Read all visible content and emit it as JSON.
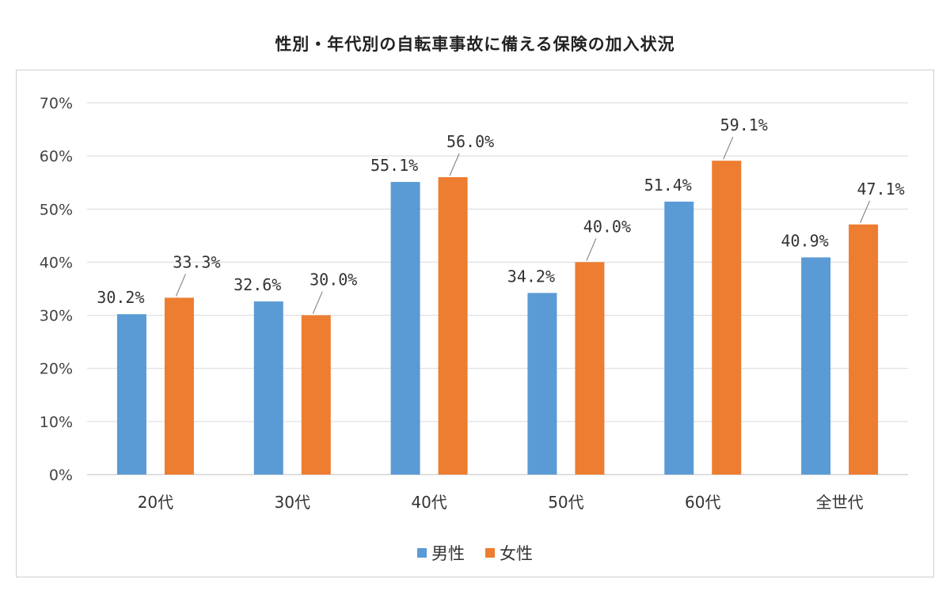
{
  "chart_data": {
    "type": "bar",
    "title": "性別・年代別の自転車事故に備える保険の加入状況",
    "categories": [
      "20代",
      "30代",
      "40代",
      "50代",
      "60代",
      "全世代"
    ],
    "series": [
      {
        "name": "男性",
        "color": "#5b9bd5",
        "values": [
          30.2,
          32.6,
          55.1,
          34.2,
          51.4,
          40.9
        ],
        "labels": [
          "30.2%",
          "32.6%",
          "55.1%",
          "34.2%",
          "51.4%",
          "40.9%"
        ]
      },
      {
        "name": "女性",
        "color": "#ed7d31",
        "values": [
          33.3,
          30.0,
          56.0,
          40.0,
          59.1,
          47.1
        ],
        "labels": [
          "33.3%",
          "30.0%",
          "56.0%",
          "40.0%",
          "59.1%",
          "47.1%"
        ]
      }
    ],
    "yticks": [
      "0%",
      "10%",
      "20%",
      "30%",
      "40%",
      "50%",
      "60%",
      "70%"
    ],
    "ylim": [
      0,
      70
    ],
    "grid": true,
    "legend_position": "bottom"
  }
}
